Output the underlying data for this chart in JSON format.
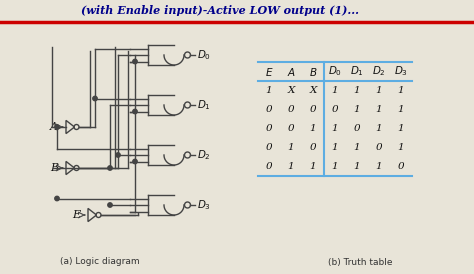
{
  "title": "(with Enable input)-Active LOW output (1)...",
  "bg_color": "#e8e4d8",
  "title_color": "#00008B",
  "title_fontsize": 8.5,
  "truth_table": {
    "headers": [
      "E",
      "A",
      "B",
      "D0",
      "D1",
      "D2",
      "D3"
    ],
    "rows": [
      [
        "1",
        "X",
        "X",
        "1",
        "1",
        "1",
        "1"
      ],
      [
        "0",
        "0",
        "0",
        "0",
        "1",
        "1",
        "1"
      ],
      [
        "0",
        "0",
        "1",
        "1",
        "0",
        "1",
        "1"
      ],
      [
        "0",
        "1",
        "0",
        "1",
        "1",
        "0",
        "1"
      ],
      [
        "0",
        "1",
        "1",
        "1",
        "1",
        "1",
        "0"
      ]
    ]
  },
  "table_line_color": "#5dade2",
  "gate_color": "#444444",
  "wire_color": "#444444",
  "label_color": "#111111",
  "caption_left": "(a) Logic diagram",
  "caption_right": "(b) Truth table",
  "caption_color": "#333333",
  "header_line_color": "#cc0000"
}
